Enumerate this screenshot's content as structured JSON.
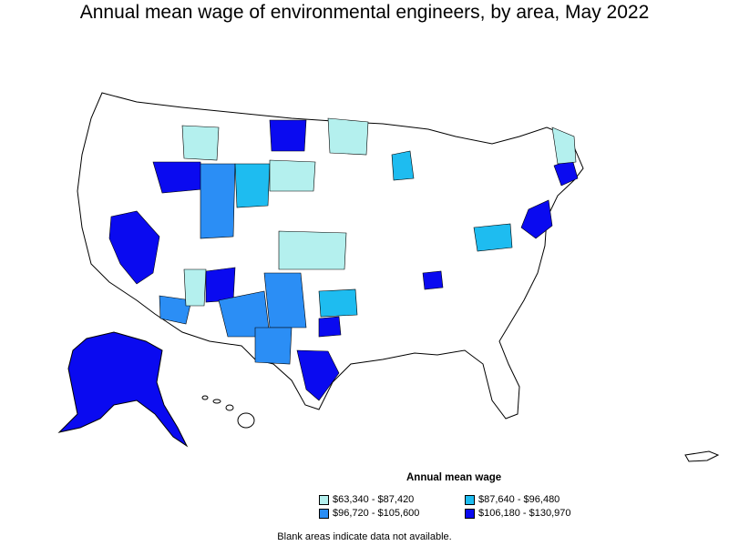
{
  "title": "Annual mean wage of environmental engineers, by area, May 2022",
  "legend": {
    "title": "Annual mean wage",
    "items": [
      {
        "label": "$63,340 - $87,420",
        "color": "#b4f0ee"
      },
      {
        "label": "$87,640 - $96,480",
        "color": "#1ebcf0"
      },
      {
        "label": "$96,720 - $105,600",
        "color": "#2b8ef5"
      },
      {
        "label": "$106,180 - $130,970",
        "color": "#0a0af0"
      }
    ]
  },
  "note": "Blank areas indicate data not available.",
  "colors": {
    "outline": "#000000",
    "blank": "#ffffff"
  }
}
